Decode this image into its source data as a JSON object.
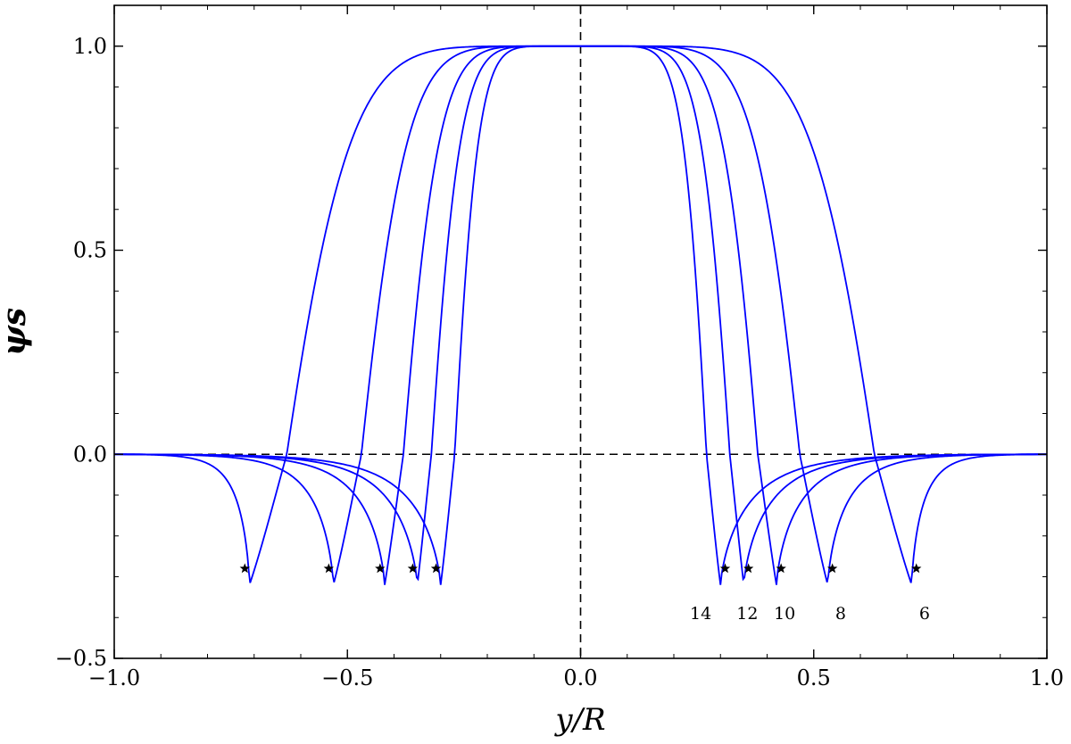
{
  "chart_data": {
    "type": "line",
    "xlabel": "y/R",
    "ylabel": "ψs",
    "xlim": [
      -1.0,
      1.0
    ],
    "ylim": [
      -0.5,
      1.1
    ],
    "x_ticks": [
      -1.0,
      -0.5,
      0.0,
      0.5,
      1.0
    ],
    "x_tick_labels": [
      "−1.0",
      "−0.5",
      "0.0",
      "0.5",
      "1.0"
    ],
    "y_ticks": [
      -0.5,
      0.0,
      0.5,
      1.0
    ],
    "y_tick_labels": [
      "−0.5",
      "0.0",
      "0.5",
      "1.0"
    ],
    "grid": false,
    "line_color": "#0000ff",
    "reference_lines": [
      {
        "orientation": "horizontal",
        "value": 0.0,
        "style": "dashed"
      },
      {
        "orientation": "vertical",
        "value": 0.0,
        "style": "dashed"
      }
    ],
    "series": [
      {
        "name": "6",
        "zero_crossing": 0.63,
        "min_position": 0.71,
        "min_value": -0.32,
        "marker": {
          "x": 0.72,
          "y": -0.28
        }
      },
      {
        "name": "8",
        "zero_crossing": 0.47,
        "min_position": 0.53,
        "min_value": -0.32,
        "marker": {
          "x": 0.54,
          "y": -0.28
        }
      },
      {
        "name": "10",
        "zero_crossing": 0.38,
        "min_position": 0.42,
        "min_value": -0.32,
        "marker": {
          "x": 0.43,
          "y": -0.28
        }
      },
      {
        "name": "12",
        "zero_crossing": 0.32,
        "min_position": 0.35,
        "min_value": -0.32,
        "marker": {
          "x": 0.36,
          "y": -0.28
        }
      },
      {
        "name": "14",
        "zero_crossing": 0.27,
        "min_position": 0.3,
        "min_value": -0.32,
        "marker": {
          "x": 0.31,
          "y": -0.28
        }
      }
    ],
    "annotations": [
      {
        "text": "14",
        "x": 0.25,
        "y": -0.36
      },
      {
        "text": "12",
        "x": 0.35,
        "y": -0.36
      },
      {
        "text": "10",
        "x": 0.43,
        "y": -0.36
      },
      {
        "text": "8",
        "x": 0.55,
        "y": -0.36
      },
      {
        "text": "6",
        "x": 0.73,
        "y": -0.36
      }
    ]
  }
}
